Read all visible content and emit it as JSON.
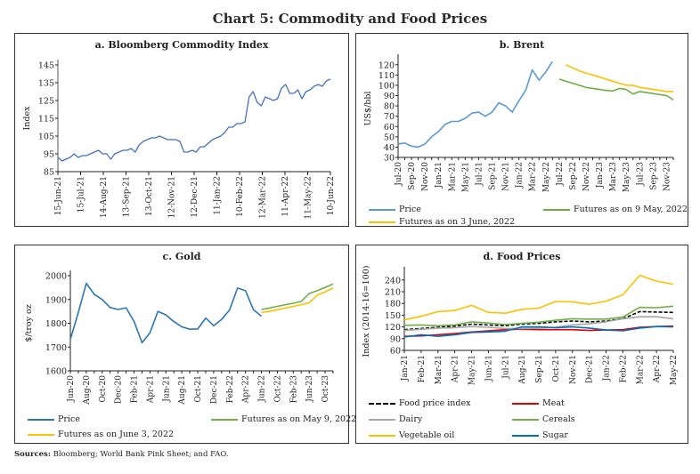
{
  "title": "Chart 5: Commodity and Food Prices",
  "sources_label": "Sources:",
  "sources_text": " Bloomberg; World Bank Pink Sheet; and FAO.",
  "chart_data": [
    {
      "id": "a",
      "type": "line",
      "title": "a. Bloomberg Commodity Index",
      "ylabel": "Index",
      "ylim": [
        85,
        145
      ],
      "yticks": [
        85,
        95,
        105,
        115,
        125,
        135,
        145
      ],
      "xticks": [
        "15-Jun-21",
        "15-Jul-21",
        "14-Aug-21",
        "13-Sep-21",
        "13-Oct-21",
        "12-Nov-21",
        "12-Dec-21",
        "11-Jan-22",
        "10-Feb-22",
        "12-Mar-22",
        "11-Apr-22",
        "11-May-22",
        "10-Jun-22"
      ],
      "series": [
        {
          "color": "#4472c4",
          "values": [
            93,
            91,
            92,
            93,
            95,
            93,
            94,
            94,
            95,
            96,
            97,
            95,
            95,
            92,
            95,
            96,
            97,
            97,
            98,
            96,
            100,
            102,
            103,
            104,
            104,
            105,
            104,
            103,
            103,
            103,
            102,
            96,
            96,
            97,
            96,
            99,
            99,
            101,
            103,
            104,
            105,
            107,
            110,
            110,
            112,
            112,
            113,
            127,
            130,
            124,
            122,
            127,
            126,
            125,
            126,
            132,
            134,
            129,
            129,
            131,
            126,
            130,
            131,
            133,
            134,
            133,
            136,
            137
          ]
        }
      ]
    },
    {
      "id": "b",
      "type": "line",
      "title": "b. Brent",
      "ylabel": "US$/bbl",
      "ylim": [
        30,
        125
      ],
      "yticks": [
        30,
        40,
        50,
        60,
        70,
        80,
        90,
        100,
        110,
        120
      ],
      "categories_count": 42,
      "xticks": [
        "Jul-20",
        "Sep-20",
        "Nov-20",
        "Jan-21",
        "Mar-21",
        "May-21",
        "Jul-21",
        "Sep-21",
        "Nov-21",
        "Jan-22",
        "Mar-22",
        "May-22",
        "Jul-22",
        "Sep-22",
        "Nov-22",
        "Jan-23",
        "Mar-23",
        "May-23",
        "Jul-23",
        "Sep-23",
        "Nov-23"
      ],
      "series": [
        {
          "name": "Price",
          "color": "#5b9bd5",
          "start": 0,
          "values": [
            43,
            44,
            41,
            40,
            43,
            50,
            55,
            62,
            65,
            65,
            68,
            73,
            74,
            70,
            74,
            83,
            80,
            74,
            85,
            95,
            115,
            105,
            113,
            123
          ]
        },
        {
          "name": "Futures as on 9 May, 2022",
          "color": "#70ad47",
          "start": 24,
          "values": [
            106,
            104,
            102,
            100,
            98,
            97,
            96,
            95,
            94.5,
            97,
            96,
            91.5,
            94,
            93,
            92,
            91,
            90,
            86
          ]
        },
        {
          "name": "Futures as on 3 June, 2022",
          "color": "#ffc000",
          "start": 25,
          "values": [
            120,
            117,
            114,
            112,
            110,
            108,
            106,
            104,
            102,
            100,
            100,
            98,
            97,
            96,
            95,
            94,
            94
          ]
        }
      ]
    },
    {
      "id": "c",
      "type": "line",
      "title": "c. Gold",
      "ylabel": "$/troy oz",
      "ylim": [
        1600,
        2000
      ],
      "yticks": [
        1600,
        1700,
        1800,
        1900,
        2000
      ],
      "categories_count": 34,
      "xticks": [
        "Jun-20",
        "Aug-20",
        "Oct-20",
        "Dec-20",
        "Feb-21",
        "Apr-21",
        "Jun-21",
        "Aug-21",
        "Oct-21",
        "Dec-21",
        "Feb-22",
        "Apr-22",
        "Jun-22",
        "Oct-22",
        "Feb-23",
        "Jun-23",
        "Oct-23"
      ],
      "series": [
        {
          "name": "Price",
          "color": "#2e75b6",
          "start": 0,
          "values": [
            1732,
            1845,
            1968,
            1922,
            1900,
            1866,
            1858,
            1865,
            1808,
            1718,
            1760,
            1850,
            1835,
            1807,
            1785,
            1775,
            1776,
            1822,
            1790,
            1816,
            1856,
            1948,
            1937,
            1857,
            1830
          ]
        },
        {
          "name": "Futures as on May 9, 2022",
          "color": "#70ad47",
          "start": 24,
          "values": [
            1858,
            1864,
            1871,
            1878,
            1884,
            1892,
            1925,
            1937,
            1951,
            1965
          ]
        },
        {
          "name": "Futures as on June 3, 2022",
          "color": "#ffc000",
          "start": 24,
          "values": [
            1845,
            1850,
            1857,
            1864,
            1871,
            1878,
            1886,
            1918,
            1932,
            1948
          ]
        }
      ]
    },
    {
      "id": "d",
      "type": "line",
      "title": "d. Food Prices",
      "ylabel": "Index (2014-16=100)",
      "ylim": [
        60,
        260
      ],
      "yticks": [
        60,
        90,
        120,
        150,
        180,
        210,
        240
      ],
      "categories_count": 17,
      "xticks": [
        "Jan-21",
        "Feb-21",
        "Mar-21",
        "Apr-21",
        "May-21",
        "Jun-21",
        "Jul-21",
        "Aug-21",
        "Sep-21",
        "Oct-21",
        "Nov-21",
        "Dec-21",
        "Jan-22",
        "Feb-22",
        "Mar-22",
        "Apr-22",
        "May-22"
      ],
      "series": [
        {
          "name": "Food price index",
          "color": "#000000",
          "dashed": true,
          "start": 0,
          "values": [
            113,
            116,
            119,
            122,
            127,
            125,
            123,
            127,
            129,
            133,
            135,
            133,
            135,
            141,
            159,
            158,
            157
          ]
        },
        {
          "name": "Meat",
          "color": "#e00000",
          "start": 0,
          "values": [
            96,
            97,
            100,
            103,
            107,
            110,
            113,
            114,
            113,
            113,
            113,
            111,
            112,
            113,
            119,
            121,
            122
          ]
        },
        {
          "name": "Dairy",
          "color": "#a6a6a6",
          "start": 0,
          "values": [
            111,
            114,
            117,
            118,
            121,
            119,
            116,
            116,
            117,
            119,
            125,
            128,
            133,
            141,
            146,
            146,
            141
          ]
        },
        {
          "name": "Cereals",
          "color": "#70ad47",
          "start": 0,
          "values": [
            124,
            125,
            123,
            125,
            133,
            130,
            126,
            129,
            132,
            137,
            141,
            140,
            140,
            145,
            170,
            169,
            173
          ]
        },
        {
          "name": "Vegetable oil",
          "color": "#ffc000",
          "start": 0,
          "values": [
            138,
            147,
            159,
            162,
            175,
            157,
            155,
            165,
            168,
            185,
            184,
            178,
            186,
            202,
            252,
            237,
            229
          ]
        },
        {
          "name": "Sugar",
          "color": "#0070c0",
          "start": 0,
          "values": [
            94,
            100,
            96,
            100,
            106,
            107,
            109,
            120,
            120,
            118,
            120,
            117,
            112,
            110,
            117,
            121,
            120
          ]
        }
      ]
    }
  ]
}
